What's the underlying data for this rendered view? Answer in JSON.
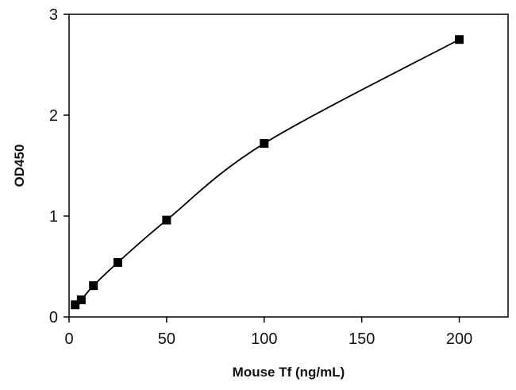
{
  "chart_data": {
    "type": "scatter",
    "title": "",
    "xlabel": "Mouse Tf (ng/mL)",
    "ylabel": "OD450",
    "xlim": [
      0,
      225
    ],
    "ylim": [
      0,
      3
    ],
    "xticks": [
      0,
      50,
      100,
      150,
      200
    ],
    "xtick_labels": [
      "0",
      "50",
      "100",
      "150",
      "200"
    ],
    "yticks": [
      0,
      1,
      2,
      3
    ],
    "ytick_labels": [
      "0",
      "1",
      "2",
      "3"
    ],
    "grid": false,
    "legend": "none",
    "marker": "square",
    "fit_line": "smooth standard curve",
    "colors": {
      "points": "#000000",
      "line": "#000000",
      "axes": "#000000"
    },
    "series": [
      {
        "x": [
          3.125,
          6.25,
          12.5,
          25,
          50,
          100,
          200
        ],
        "y": [
          0.12,
          0.17,
          0.31,
          0.54,
          0.96,
          1.72,
          2.75
        ]
      }
    ]
  }
}
